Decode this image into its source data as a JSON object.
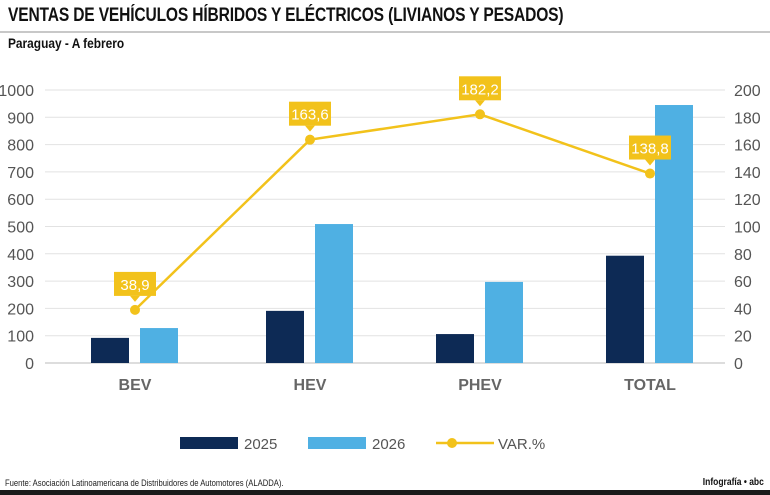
{
  "header": {
    "title": "VENTAS DE VEHÍCULOS HÍBRIDOS Y ELÉCTRICOS (LIVIANOS Y PESADOS)",
    "subtitle": "Paraguay - A febrero"
  },
  "footer": {
    "source": "Fuente: Asociación Latinoamericana de Distribuidores de Automotores (ALADDA).",
    "credit": "Infografía • abc"
  },
  "chart_data": {
    "type": "bar",
    "categories": [
      "BEV",
      "HEV",
      "PHEV",
      "TOTAL"
    ],
    "series": [
      {
        "name": "2025",
        "type": "bar",
        "axis": "left",
        "color": "#0d2a55",
        "values": [
          92,
          191,
          106,
          393
        ]
      },
      {
        "name": "2026",
        "type": "bar",
        "axis": "left",
        "color": "#4fb0e3",
        "values": [
          128,
          509,
          297,
          945
        ]
      },
      {
        "name": "VAR.%",
        "type": "line",
        "axis": "right",
        "color": "#f2c21b",
        "values": [
          38.9,
          163.6,
          182.2,
          138.8
        ],
        "labels": [
          "38,9",
          "163,6",
          "182,2",
          "138,8"
        ]
      }
    ],
    "ylim": [
      0,
      1000
    ],
    "y2lim": [
      0,
      200
    ],
    "yticks": [
      "0",
      "100",
      "200",
      "300",
      "400",
      "500",
      "600",
      "700",
      "800",
      "900",
      "1000"
    ],
    "y2ticks": [
      "0",
      "20",
      "40",
      "60",
      "80",
      "100",
      "120",
      "140",
      "160",
      "180",
      "200"
    ],
    "grid": true,
    "legend": "bottom"
  }
}
